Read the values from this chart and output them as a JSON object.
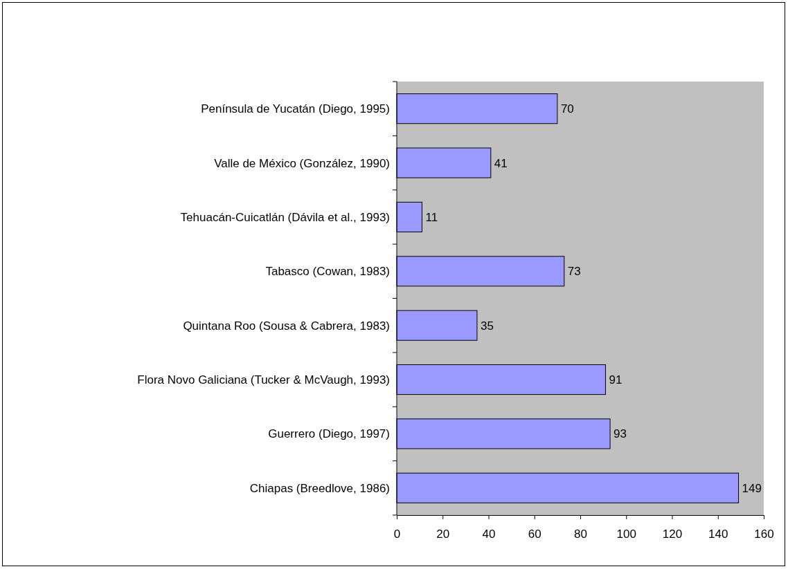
{
  "chart_data": {
    "type": "bar",
    "orientation": "horizontal",
    "categories": [
      "Península de Yucatán (Diego, 1995)",
      "Valle de México (González, 1990)",
      "Tehuacán-Cuicatlán (Dávila et al., 1993)",
      "Tabasco (Cowan, 1983)",
      "Quintana Roo (Sousa & Cabrera, 1983)",
      "Flora Novo Galiciana (Tucker & McVaugh, 1993)",
      "Guerrero (Diego, 1997)",
      "Chiapas (Breedlove, 1986)"
    ],
    "values": [
      70,
      41,
      11,
      73,
      35,
      91,
      93,
      149
    ],
    "color": "#9999ff",
    "xlim": [
      0,
      160
    ],
    "xticks": [
      0,
      20,
      40,
      60,
      80,
      100,
      120,
      140,
      160
    ],
    "data_labels": true,
    "grid": false
  }
}
